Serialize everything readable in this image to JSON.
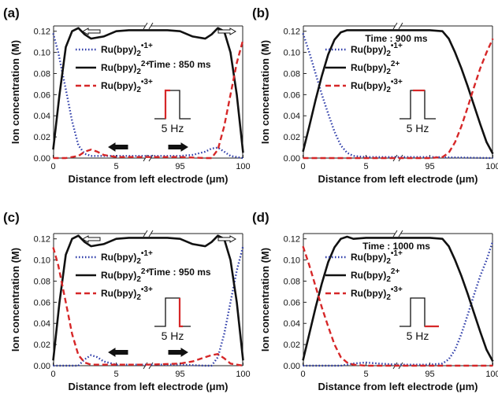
{
  "chart_data": [
    {
      "panel": "(a)",
      "type": "line",
      "time_label": "Time : 850 ms",
      "pulse_label": "5 Hz",
      "pulse_highlight": "rising",
      "arrows": "outward",
      "ylabel": "Ion concentration (M)",
      "xlabel": "Distance from left electrode (μm)",
      "ylim": [
        0,
        0.125
      ],
      "yticks": [
        "0.00",
        "0.02",
        "0.04",
        "0.06",
        "0.08",
        "0.10",
        "0.12"
      ],
      "xticks": [
        "0",
        "5",
        "95",
        "100"
      ],
      "x_break": true,
      "series": [
        {
          "name": "Ru(bpy)2•1+",
          "color": "#2b3aa8",
          "dash": "dot",
          "x": [
            0,
            0.4,
            1,
            1.5,
            2,
            2.5,
            3,
            4,
            5,
            7.5,
            92.5,
            95,
            96,
            97,
            97.5,
            98,
            98.5,
            99,
            100
          ],
          "y": [
            0.118,
            0.1,
            0.065,
            0.035,
            0.012,
            0.004,
            0.002,
            0.002,
            0.002,
            0.002,
            0.002,
            0.002,
            0.003,
            0.006,
            0.009,
            0.01,
            0.006,
            0.002,
            0
          ]
        },
        {
          "name": "Ru(bpy)2 2+",
          "color": "#111111",
          "dash": "solid",
          "x": [
            0,
            0.5,
            1,
            1.5,
            2,
            2.5,
            3,
            4,
            5,
            6,
            7.5,
            92.5,
            94,
            95,
            96,
            97,
            97.5,
            98,
            98.5,
            99,
            99.5,
            100
          ],
          "y": [
            0.008,
            0.06,
            0.105,
            0.12,
            0.123,
            0.117,
            0.113,
            0.115,
            0.12,
            0.121,
            0.121,
            0.121,
            0.121,
            0.12,
            0.115,
            0.113,
            0.117,
            0.123,
            0.12,
            0.1,
            0.06,
            0.005
          ]
        },
        {
          "name": "Ru(bpy)2•3+",
          "color": "#d62728",
          "dash": "dash",
          "x": [
            0,
            1,
            2,
            2.5,
            3,
            3.5,
            4,
            5,
            7.5,
            92.5,
            95,
            97,
            97.5,
            98,
            98.5,
            99,
            99.5,
            100
          ],
          "y": [
            0,
            0,
            0.002,
            0.006,
            0.008,
            0.006,
            0.003,
            0.001,
            0.001,
            0.001,
            0.001,
            0,
            0,
            0.008,
            0.03,
            0.06,
            0.09,
            0.112
          ]
        }
      ]
    },
    {
      "panel": "(b)",
      "type": "line",
      "time_label": "Time : 900 ms",
      "pulse_label": "5 Hz",
      "pulse_highlight": "top",
      "arrows": "none",
      "ylabel": "Ion concentration (M)",
      "xlabel": "Distance from left electrode (μm)",
      "ylim": [
        0,
        0.125
      ],
      "yticks": [
        "0.00",
        "0.02",
        "0.04",
        "0.06",
        "0.08",
        "0.10",
        "0.12"
      ],
      "xticks": [
        "0",
        "5",
        "95",
        "100"
      ],
      "x_break": true,
      "series": [
        {
          "name": "Ru(bpy)2•1+",
          "color": "#2b3aa8",
          "dash": "dot",
          "x": [
            0,
            0.5,
            1,
            1.5,
            2,
            2.5,
            3,
            3.5,
            4,
            5,
            7.5,
            92.5,
            95,
            100
          ],
          "y": [
            0.118,
            0.1,
            0.08,
            0.06,
            0.042,
            0.025,
            0.012,
            0.005,
            0.002,
            0.001,
            0.001,
            0.001,
            0.001,
            0
          ]
        },
        {
          "name": "Ru(bpy)2 2+",
          "color": "#111111",
          "dash": "solid",
          "x": [
            0,
            0.5,
            1,
            1.5,
            2,
            2.5,
            3,
            3.5,
            4,
            5,
            7.5,
            92.5,
            95,
            96,
            96.5,
            97,
            97.5,
            98,
            98.5,
            99,
            99.5,
            100
          ],
          "y": [
            0.006,
            0.03,
            0.055,
            0.078,
            0.098,
            0.112,
            0.119,
            0.121,
            0.121,
            0.121,
            0.121,
            0.121,
            0.121,
            0.12,
            0.113,
            0.1,
            0.085,
            0.068,
            0.05,
            0.032,
            0.015,
            0.004
          ]
        },
        {
          "name": "Ru(bpy)2•3+",
          "color": "#d62728",
          "dash": "dash",
          "x": [
            0,
            5,
            7.5,
            92.5,
            95,
            96,
            96.5,
            97,
            97.5,
            98,
            98.5,
            99,
            99.5,
            100
          ],
          "y": [
            0,
            0,
            0,
            0,
            0,
            0.001,
            0.005,
            0.015,
            0.03,
            0.048,
            0.067,
            0.085,
            0.1,
            0.113
          ]
        }
      ]
    },
    {
      "panel": "(c)",
      "type": "line",
      "time_label": "Time : 950 ms",
      "pulse_label": "5 Hz",
      "pulse_highlight": "falling",
      "arrows": "inward",
      "ylabel": "Ion concentration (M)",
      "xlabel": "Distance from left electrode (μm)",
      "ylim": [
        0,
        0.125
      ],
      "yticks": [
        "0.00",
        "0.02",
        "0.04",
        "0.06",
        "0.08",
        "0.10",
        "0.12"
      ],
      "xticks": [
        "0",
        "5",
        "95",
        "100"
      ],
      "x_break": true,
      "series": [
        {
          "name": "Ru(bpy)2•1+",
          "color": "#2b3aa8",
          "dash": "dot",
          "x": [
            0,
            2,
            2.5,
            3,
            3.5,
            4,
            5,
            7.5,
            92.5,
            95,
            97,
            97.5,
            98,
            98.5,
            99,
            99.5,
            100
          ],
          "y": [
            0,
            0,
            0.006,
            0.01,
            0.008,
            0.004,
            0.001,
            0.001,
            0.001,
            0.001,
            0,
            0,
            0.008,
            0.03,
            0.06,
            0.09,
            0.113
          ]
        },
        {
          "name": "Ru(bpy)2 2+",
          "color": "#111111",
          "dash": "solid",
          "x": [
            0,
            0.5,
            1,
            1.5,
            2,
            2.5,
            3,
            4,
            5,
            6,
            7.5,
            92.5,
            94,
            95,
            96,
            97,
            97.5,
            98,
            98.5,
            99,
            99.5,
            100
          ],
          "y": [
            0.005,
            0.06,
            0.105,
            0.12,
            0.123,
            0.117,
            0.113,
            0.115,
            0.12,
            0.121,
            0.121,
            0.121,
            0.121,
            0.12,
            0.115,
            0.113,
            0.117,
            0.123,
            0.12,
            0.1,
            0.06,
            0.005
          ]
        },
        {
          "name": "Ru(bpy)2•3+",
          "color": "#d62728",
          "dash": "dash",
          "x": [
            0,
            0.4,
            1,
            1.5,
            2,
            2.5,
            3,
            4,
            5,
            7.5,
            92.5,
            95,
            96,
            97,
            97.5,
            98,
            98.5,
            99,
            100
          ],
          "y": [
            0.112,
            0.095,
            0.06,
            0.03,
            0.01,
            0.003,
            0.001,
            0.001,
            0.001,
            0.001,
            0.001,
            0.002,
            0.004,
            0.008,
            0.01,
            0.011,
            0.007,
            0.002,
            0
          ]
        }
      ]
    },
    {
      "panel": "(d)",
      "type": "line",
      "time_label": "Time : 1000 ms",
      "pulse_label": "5 Hz",
      "pulse_highlight": "bottom",
      "arrows": "none",
      "ylabel": "Ion concentration (M)",
      "xlabel": "Distance from left electrode (μm)",
      "ylim": [
        0,
        0.125
      ],
      "yticks": [
        "0.00",
        "0.02",
        "0.04",
        "0.06",
        "0.08",
        "0.10",
        "0.12"
      ],
      "xticks": [
        "0",
        "5",
        "95",
        "100"
      ],
      "x_break": true,
      "series": [
        {
          "name": "Ru(bpy)2•1+",
          "color": "#2b3aa8",
          "dash": "dot",
          "x": [
            0,
            3,
            4,
            5,
            6,
            7.5,
            92.5,
            95,
            96,
            96.5,
            97,
            97.5,
            98,
            98.5,
            99,
            99.5,
            100
          ],
          "y": [
            0,
            0,
            0.002,
            0.003,
            0.002,
            0.001,
            0.001,
            0.001,
            0.002,
            0.006,
            0.015,
            0.03,
            0.048,
            0.067,
            0.085,
            0.1,
            0.118
          ]
        },
        {
          "name": "Ru(bpy)2 2+",
          "color": "#111111",
          "dash": "solid",
          "x": [
            0,
            0.5,
            1,
            1.5,
            2,
            2.5,
            3,
            3.5,
            4,
            5,
            7.5,
            92.5,
            95,
            96,
            96.5,
            97,
            97.5,
            98,
            98.5,
            99,
            99.5,
            100
          ],
          "y": [
            0.005,
            0.03,
            0.055,
            0.078,
            0.098,
            0.112,
            0.12,
            0.122,
            0.12,
            0.121,
            0.121,
            0.121,
            0.121,
            0.12,
            0.113,
            0.1,
            0.085,
            0.068,
            0.05,
            0.032,
            0.015,
            0.004
          ]
        },
        {
          "name": "Ru(bpy)2•3+",
          "color": "#d62728",
          "dash": "dash",
          "x": [
            0,
            0.5,
            1,
            1.5,
            2,
            2.5,
            3,
            3.5,
            4,
            5,
            7.5,
            92.5,
            95,
            100
          ],
          "y": [
            0.113,
            0.095,
            0.075,
            0.055,
            0.037,
            0.02,
            0.008,
            0.003,
            0.001,
            0,
            0,
            0,
            0,
            0
          ]
        }
      ]
    }
  ]
}
